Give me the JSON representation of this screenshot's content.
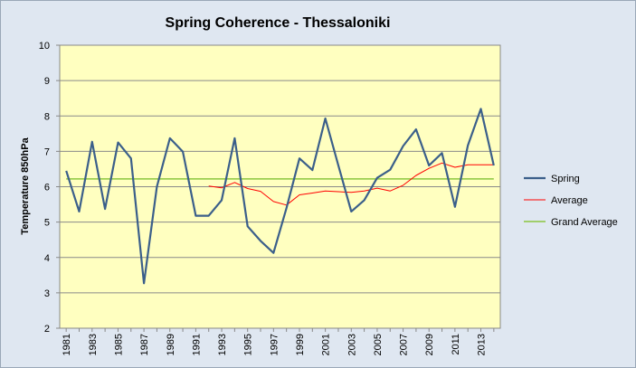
{
  "chart_data": {
    "type": "line",
    "title": "Spring Coherence - Thessaloniki",
    "xlabel": "",
    "ylabel": "Temperature 850hPa",
    "ylim": [
      2,
      10
    ],
    "yticks": [
      2,
      3,
      4,
      5,
      6,
      7,
      8,
      9,
      10
    ],
    "xtick_labels": [
      "1981",
      "1983",
      "1985",
      "1987",
      "1989",
      "1991",
      "1993",
      "1995",
      "1997",
      "1999",
      "2001",
      "2003",
      "2005",
      "2007",
      "2009",
      "2011",
      "2013"
    ],
    "x": [
      1981,
      1982,
      1983,
      1984,
      1985,
      1986,
      1987,
      1988,
      1989,
      1990,
      1991,
      1992,
      1993,
      1994,
      1995,
      1996,
      1997,
      1998,
      1999,
      2000,
      2001,
      2002,
      2003,
      2004,
      2005,
      2006,
      2007,
      2008,
      2009,
      2010,
      2011,
      2012,
      2013,
      2014
    ],
    "grid": true,
    "plot_background": "#ffffc0",
    "legend_position": "right",
    "series": [
      {
        "name": "Spring",
        "color": "#3b5f8a",
        "values": [
          6.45,
          5.3,
          7.27,
          5.37,
          7.25,
          6.8,
          3.27,
          6.0,
          7.37,
          6.99,
          5.18,
          5.18,
          5.62,
          7.37,
          4.88,
          4.47,
          4.13,
          5.4,
          6.8,
          6.47,
          7.93,
          6.6,
          5.3,
          5.62,
          6.25,
          6.48,
          7.15,
          7.62,
          6.6,
          6.95,
          5.43,
          7.17,
          8.2,
          6.6
        ]
      },
      {
        "name": "Average",
        "color": "#ff0000",
        "values": [
          null,
          null,
          null,
          null,
          null,
          null,
          null,
          null,
          null,
          null,
          null,
          6.02,
          5.97,
          6.12,
          5.95,
          5.87,
          5.58,
          5.48,
          5.77,
          5.82,
          5.88,
          5.86,
          5.84,
          5.88,
          5.96,
          5.88,
          6.04,
          6.32,
          6.52,
          6.67,
          6.55,
          6.62,
          6.62,
          6.62
        ]
      },
      {
        "name": "Grand Average",
        "color": "#8cc63f",
        "values": [
          6.22,
          6.22,
          6.22,
          6.22,
          6.22,
          6.22,
          6.22,
          6.22,
          6.22,
          6.22,
          6.22,
          6.22,
          6.22,
          6.22,
          6.22,
          6.22,
          6.22,
          6.22,
          6.22,
          6.22,
          6.22,
          6.22,
          6.22,
          6.22,
          6.22,
          6.22,
          6.22,
          6.22,
          6.22,
          6.22,
          6.22,
          6.22,
          6.22,
          6.22
        ]
      }
    ]
  }
}
